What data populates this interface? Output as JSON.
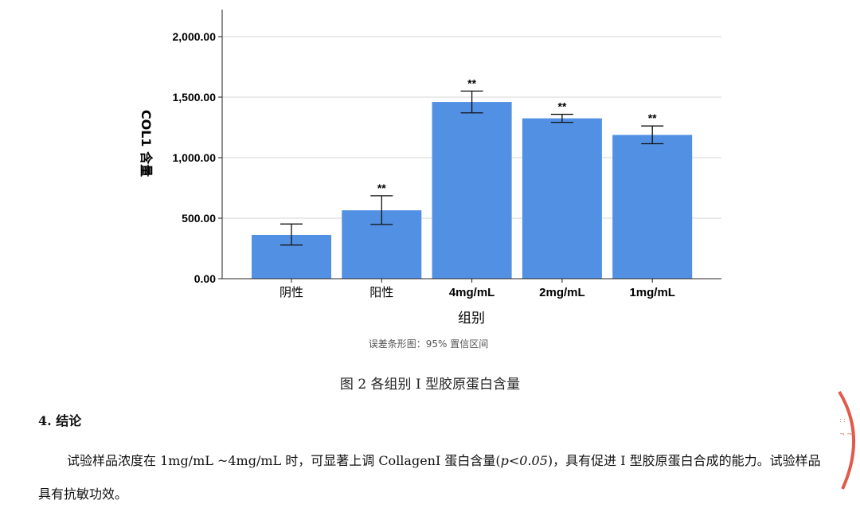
{
  "chart_data": {
    "type": "bar",
    "categories": [
      "阴性",
      "阳性",
      "4mg/mL",
      "2mg/mL",
      "1mg/mL"
    ],
    "values": [
      362,
      565,
      1460,
      1325,
      1188
    ],
    "errors": [
      {
        "low": 278,
        "high": 452
      },
      {
        "low": 448,
        "high": 685
      },
      {
        "low": 1370,
        "high": 1550
      },
      {
        "low": 1292,
        "high": 1358
      },
      {
        "low": 1115,
        "high": 1262
      }
    ],
    "significance": [
      "",
      "**",
      "**",
      "**",
      "**"
    ],
    "ylim": [
      0,
      2000
    ],
    "yticks": [
      "0.00",
      "500.00",
      "1,000.00",
      "1,500.00",
      "2,000.00"
    ],
    "ytick_values": [
      0,
      500,
      1000,
      1500,
      2000
    ],
    "xlabel": "组别",
    "ylabel": "COL1 含量",
    "note": "误差条形图：95% 置信区间",
    "grid": true,
    "bar_color": "#5290E3"
  },
  "caption": "图 2 各组别 I 型胶原蛋白含量",
  "section": {
    "heading": "4.  结论",
    "para_before_p": "试验样品浓度在 1mg/mL ~4mg/mL 时，可显著上调 CollagenI 蛋白含量(",
    "p_value": "p<0.05",
    "para_after_p": ")，具有促进 I 型胶原蛋白合成的能力。试验样品具有抗敏功效。"
  }
}
